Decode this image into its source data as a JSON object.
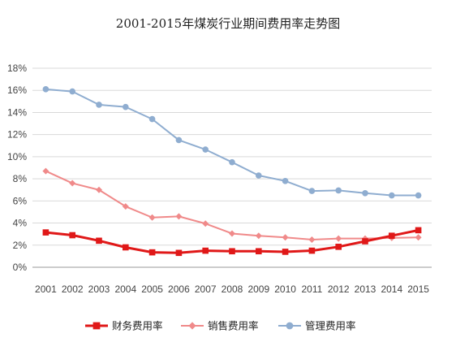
{
  "chart_data": {
    "type": "line",
    "title": "2001-2015年煤炭行业期间费用率走势图",
    "xlabel": "",
    "ylabel": "",
    "x": [
      "2001",
      "2002",
      "2003",
      "2004",
      "2005",
      "2006",
      "2007",
      "2008",
      "2009",
      "2010",
      "2011",
      "2012",
      "2013",
      "2014",
      "2015"
    ],
    "y_ticks": [
      "0%",
      "2%",
      "4%",
      "6%",
      "8%",
      "10%",
      "12%",
      "14%",
      "16%",
      "18%"
    ],
    "ylim": [
      0,
      18
    ],
    "grid": true,
    "legend_position": "bottom",
    "series": [
      {
        "name": "财务费用率",
        "color": "#e01818",
        "marker": "square",
        "values": [
          3.15,
          2.9,
          2.4,
          1.8,
          1.35,
          1.3,
          1.5,
          1.45,
          1.45,
          1.4,
          1.5,
          1.85,
          2.35,
          2.85,
          3.35
        ]
      },
      {
        "name": "销售费用率",
        "color": "#f08a8a",
        "marker": "diamond",
        "values": [
          8.7,
          7.6,
          7.0,
          5.5,
          4.5,
          4.6,
          3.95,
          3.05,
          2.85,
          2.7,
          2.5,
          2.6,
          2.6,
          2.65,
          2.7
        ]
      },
      {
        "name": "管理费用率",
        "color": "#8fadd0",
        "marker": "circle",
        "values": [
          16.1,
          15.9,
          14.7,
          14.5,
          13.4,
          11.5,
          10.65,
          9.5,
          8.3,
          7.8,
          6.9,
          6.95,
          6.7,
          6.5,
          6.5
        ]
      }
    ]
  }
}
